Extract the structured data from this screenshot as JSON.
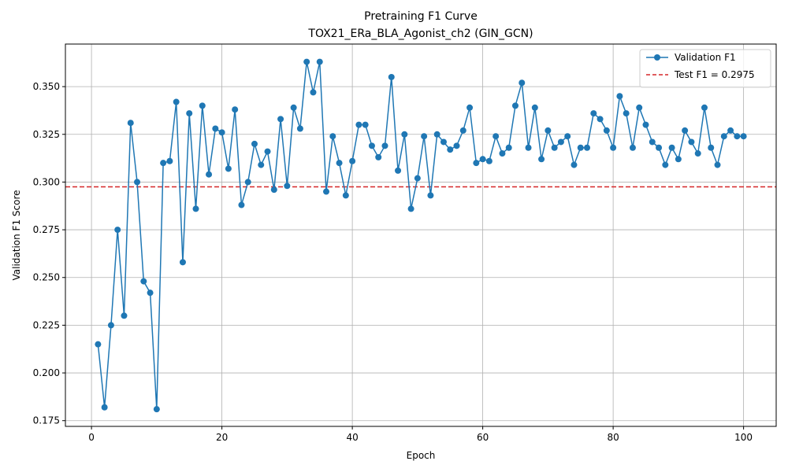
{
  "chart_data": {
    "type": "line",
    "title": "Pretraining F1 Curve",
    "subtitle": "TOX21_ERa_BLA_Agonist_ch2 (GIN_GCN)",
    "xlabel": "Epoch",
    "ylabel": "Validation F1 Score",
    "xlim": [
      -4,
      105
    ],
    "ylim": [
      0.172,
      0.3723
    ],
    "xticks": [
      0,
      20,
      40,
      60,
      80,
      100
    ],
    "yticks": [
      0.175,
      0.2,
      0.225,
      0.25,
      0.275,
      0.3,
      0.325,
      0.35
    ],
    "ytick_labels": [
      "0.175",
      "0.200",
      "0.225",
      "0.250",
      "0.275",
      "0.300",
      "0.325",
      "0.350"
    ],
    "grid": true,
    "legend_position": "top-right",
    "series": [
      {
        "name": "Validation F1",
        "color": "#1f77b4",
        "marker": "circle",
        "x": [
          1,
          2,
          3,
          4,
          5,
          6,
          7,
          8,
          9,
          10,
          11,
          12,
          13,
          14,
          15,
          16,
          17,
          18,
          19,
          20,
          21,
          22,
          23,
          24,
          25,
          26,
          27,
          28,
          29,
          30,
          31,
          32,
          33,
          34,
          35,
          36,
          37,
          38,
          39,
          40,
          41,
          42,
          43,
          44,
          45,
          46,
          47,
          48,
          49,
          50,
          51,
          52,
          53,
          54,
          55,
          56,
          57,
          58,
          59,
          60,
          61,
          62,
          63,
          64,
          65,
          66,
          67,
          68,
          69,
          70,
          71,
          72,
          73,
          74,
          75,
          76,
          77,
          78,
          79,
          80,
          81,
          82,
          83,
          84,
          85,
          86,
          87,
          88,
          89,
          90,
          91,
          92,
          93,
          94,
          95,
          96,
          97,
          98,
          99,
          100
        ],
        "y": [
          0.215,
          0.182,
          0.225,
          0.275,
          0.23,
          0.331,
          0.3,
          0.248,
          0.242,
          0.181,
          0.31,
          0.311,
          0.342,
          0.258,
          0.336,
          0.286,
          0.34,
          0.304,
          0.328,
          0.326,
          0.307,
          0.338,
          0.288,
          0.3,
          0.32,
          0.309,
          0.316,
          0.296,
          0.333,
          0.298,
          0.339,
          0.328,
          0.363,
          0.347,
          0.363,
          0.295,
          0.324,
          0.31,
          0.293,
          0.311,
          0.33,
          0.33,
          0.319,
          0.313,
          0.319,
          0.355,
          0.306,
          0.325,
          0.286,
          0.302,
          0.324,
          0.293,
          0.325,
          0.321,
          0.317,
          0.319,
          0.327,
          0.339,
          0.31,
          0.312,
          0.311,
          0.324,
          0.315,
          0.318,
          0.34,
          0.352,
          0.318,
          0.339,
          0.312,
          0.327,
          0.318,
          0.321,
          0.324,
          0.309,
          0.318,
          0.318,
          0.336,
          0.333,
          0.327,
          0.318,
          0.345,
          0.336,
          0.318,
          0.339,
          0.33,
          0.321,
          0.318,
          0.309,
          0.318,
          0.312,
          0.327,
          0.321,
          0.315,
          0.339,
          0.318,
          0.309,
          0.324,
          0.327,
          0.324,
          0.324
        ]
      },
      {
        "name": "Test F1 = 0.2975",
        "color": "#d62728",
        "style": "dashed",
        "y_constant": 0.2975
      }
    ]
  }
}
